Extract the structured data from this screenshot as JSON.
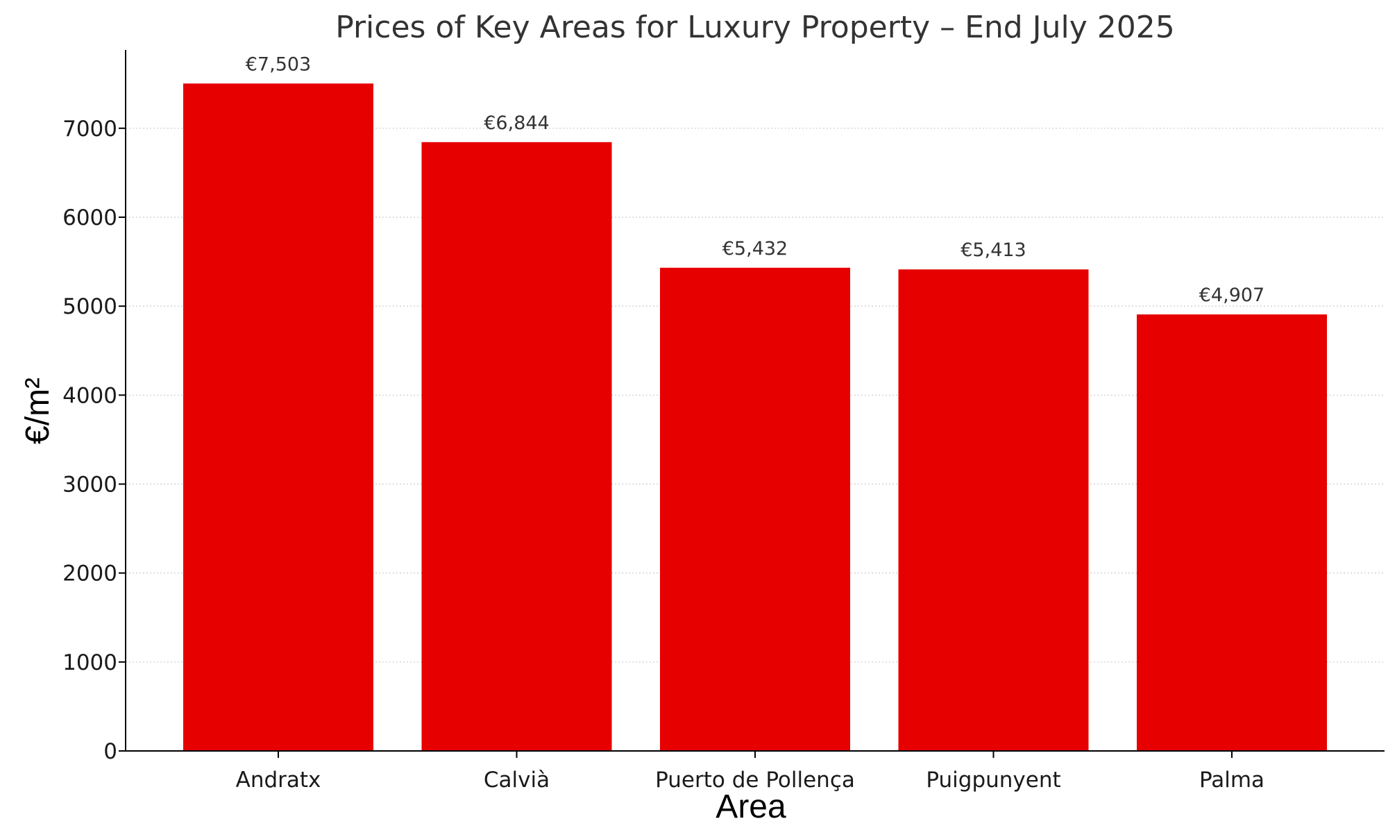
{
  "chart_data": {
    "type": "bar",
    "title": "Prices of Key Areas for Luxury Property – End July 2025",
    "xlabel": "Area",
    "ylabel": "€/m²",
    "categories": [
      "Andratx",
      "Calvià",
      "Puerto de Pollença",
      "Puigpunyent",
      "Palma"
    ],
    "values": [
      7503,
      6844,
      5432,
      5413,
      4907
    ],
    "data_labels": [
      "€7,503",
      "€6,844",
      "€5,432",
      "€5,413",
      "€4,907"
    ],
    "yticks": [
      0,
      1000,
      2000,
      3000,
      4000,
      5000,
      6000,
      7000
    ],
    "ylim": [
      0,
      7880
    ],
    "grid": "horizontal-dotted",
    "legend": "none",
    "bar_color": "#e60000"
  }
}
